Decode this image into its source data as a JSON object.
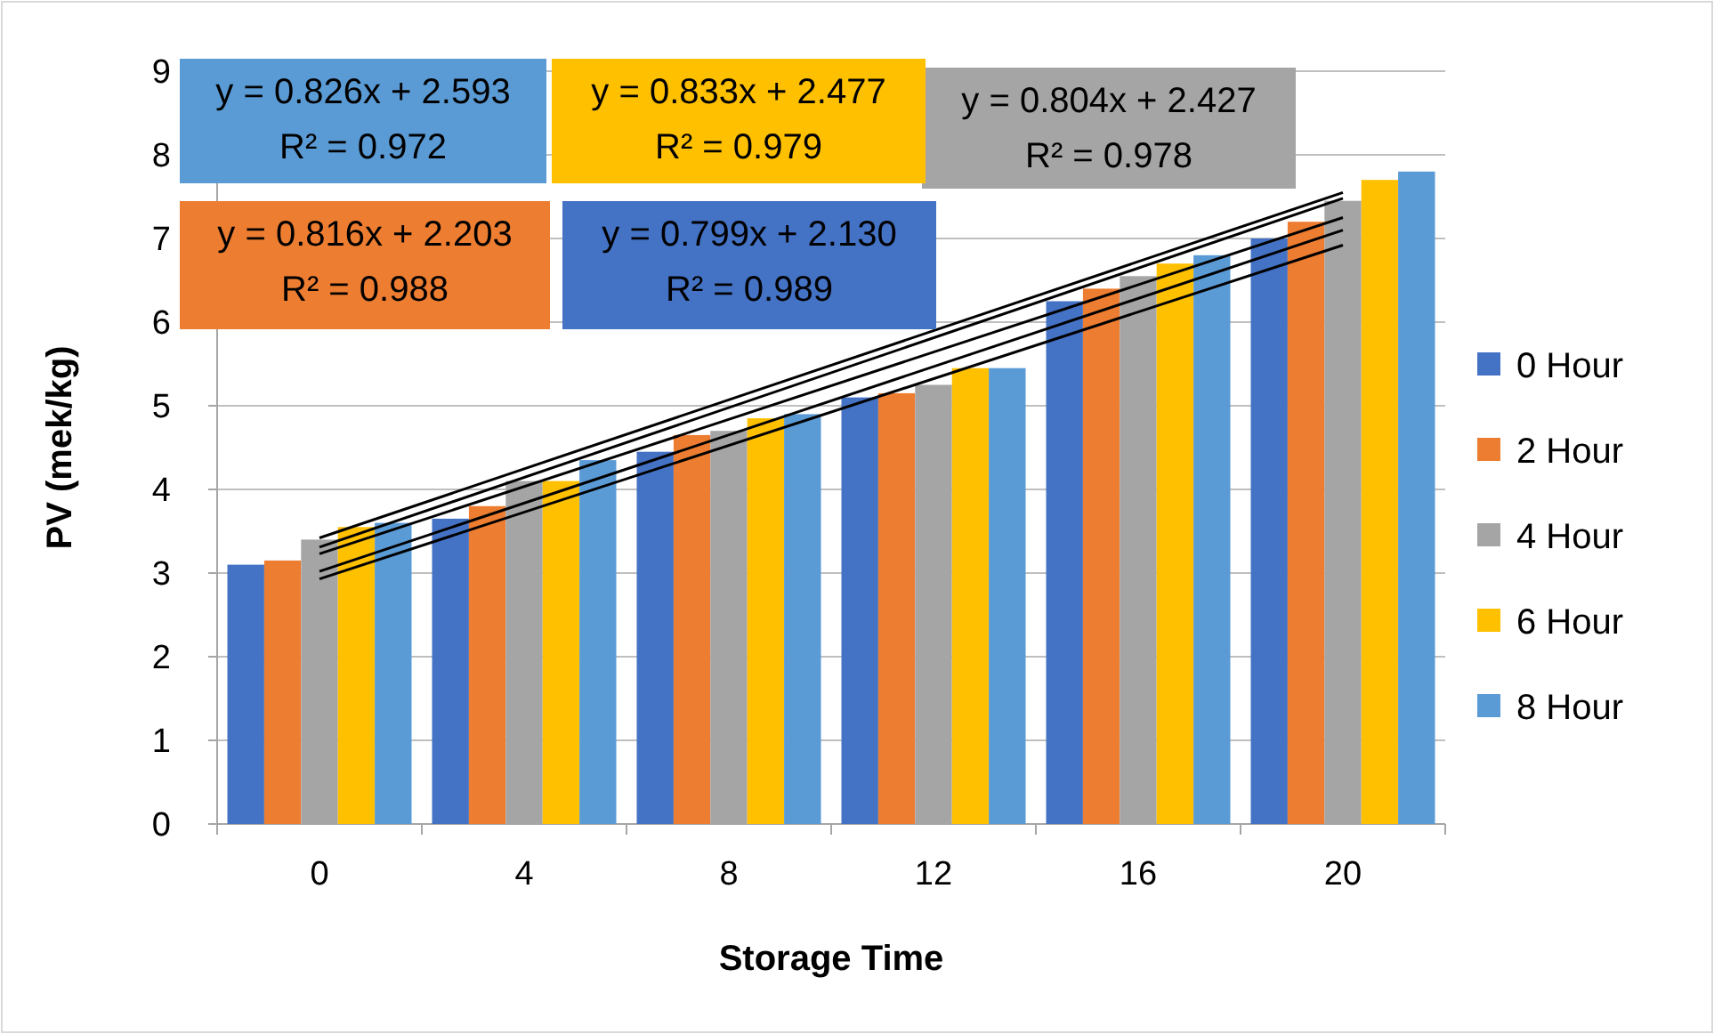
{
  "chart_data": {
    "type": "bar",
    "xlabel": "Storage Time",
    "ylabel": "PV (mek/kg)",
    "categories": [
      "0",
      "4",
      "8",
      "12",
      "16",
      "20"
    ],
    "series": [
      {
        "name": "0 Hour",
        "color": "#4472c4",
        "values": [
          3.1,
          3.65,
          4.45,
          5.1,
          6.25,
          7.0
        ]
      },
      {
        "name": "2 Hour",
        "color": "#ed7d31",
        "values": [
          3.15,
          3.8,
          4.65,
          5.15,
          6.4,
          7.2
        ]
      },
      {
        "name": "4 Hour",
        "color": "#a5a5a5",
        "values": [
          3.4,
          4.1,
          4.7,
          5.25,
          6.55,
          7.45
        ]
      },
      {
        "name": "6 Hour",
        "color": "#ffc000",
        "values": [
          3.55,
          4.1,
          4.85,
          5.45,
          6.7,
          7.7
        ]
      },
      {
        "name": "8 Hour",
        "color": "#5b9bd5",
        "values": [
          3.6,
          4.35,
          4.9,
          5.45,
          6.8,
          7.8
        ]
      },
      {
        "type": "line",
        "color": "#000000",
        "x": [
          "0",
          "20"
        ],
        "values": [
          2.93,
          6.92
        ]
      },
      {
        "type": "line",
        "color": "#000000",
        "x": [
          "0",
          "20"
        ],
        "values": [
          3.02,
          7.1
        ]
      },
      {
        "type": "line",
        "color": "#000000",
        "x": [
          "0",
          "20"
        ],
        "values": [
          3.23,
          7.25
        ]
      },
      {
        "type": "line",
        "color": "#000000",
        "x": [
          "0",
          "20"
        ],
        "values": [
          3.31,
          7.48
        ]
      },
      {
        "type": "line",
        "color": "#000000",
        "x": [
          "0",
          "20"
        ],
        "values": [
          3.42,
          7.55
        ]
      }
    ],
    "annotations": [
      "y = 0.799x + 2.130\nR² = 0.989",
      "y = 0.816x + 2.203\nR² = 0.988",
      "y = 0.804x + 2.427\nR² = 0.978",
      "y = 0.833x + 2.477\nR² = 0.979",
      "y = 0.826x + 2.593\nR² = 0.972"
    ],
    "ylim": [
      0,
      9
    ],
    "yticks": [
      0,
      1,
      2,
      3,
      4,
      5,
      6,
      7,
      8,
      9
    ],
    "grid": "y",
    "legend": "right",
    "marker": "none",
    "line_style": "solid"
  }
}
